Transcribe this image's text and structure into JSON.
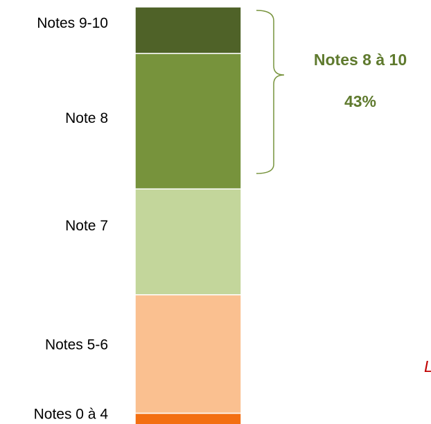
{
  "chart_data": {
    "type": "bar",
    "stacked": true,
    "categories": [
      null
    ],
    "series": [
      {
        "name": "Notes 0 à 4",
        "color": "#f36f12",
        "label_color": "#ffffff",
        "values": [
          4
        ],
        "value_labels": [
          "4%"
        ]
      },
      {
        "name": "Notes 5-6",
        "color": "#fac090",
        "label_color": "#000000",
        "values": [
          28
        ],
        "value_labels": [
          "28%"
        ]
      },
      {
        "name": "Note 7",
        "color": "#c3d69b",
        "label_color": "#000000",
        "values": [
          25
        ],
        "value_labels": [
          "25%"
        ]
      },
      {
        "name": "Note 8",
        "color": "#77933c",
        "label_color": "#ffffff",
        "values": [
          32
        ],
        "value_labels": [
          "32%"
        ]
      },
      {
        "name": "Notes 9-10",
        "color": "#4f6228",
        "label_color": "#ffffff",
        "values": [
          11
        ],
        "value_labels": [
          "11%"
        ]
      }
    ],
    "ylim": [
      0,
      100
    ],
    "annotations": [
      "Notes 8 à 10",
      "43%",
      "L"
    ]
  }
}
